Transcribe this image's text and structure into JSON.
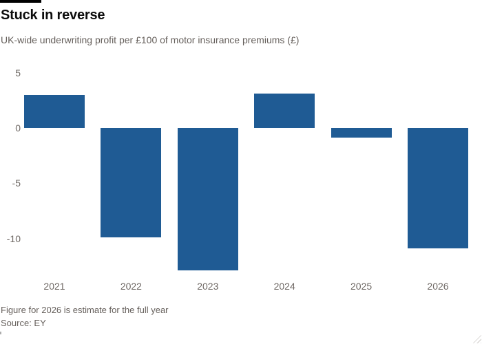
{
  "chart_data": {
    "type": "bar",
    "title": "Stuck in reverse",
    "subtitle": "UK-wide underwriting profit per £100 of motor insurance premiums (£)",
    "categories": [
      "2021",
      "2022",
      "2023",
      "2024",
      "2025",
      "2026"
    ],
    "values": [
      3,
      -9.9,
      -12.9,
      3.1,
      -0.9,
      -10.9
    ],
    "xlabel": "",
    "ylabel": "",
    "yticks": [
      5,
      0,
      -5,
      -10
    ],
    "ylim": [
      -13.3,
      6
    ],
    "grid": false,
    "legend": null,
    "bar_color": "#1f5b94",
    "note": "Figure for 2026 is estimate for the full year",
    "source": "Source: EY"
  }
}
